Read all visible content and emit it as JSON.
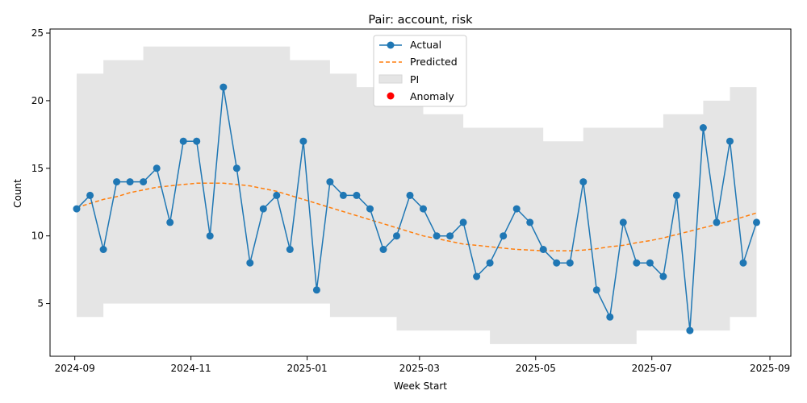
{
  "chart_data": {
    "type": "line",
    "title": "Pair: account, risk",
    "xlabel": "Week Start",
    "ylabel": "Count",
    "x_ticks": [
      "2024-09",
      "2024-11",
      "2025-01",
      "2025-03",
      "2025-05",
      "2025-07",
      "2025-09"
    ],
    "y_ticks": [
      5,
      10,
      15,
      20,
      25
    ],
    "xlim": [
      "2024-08-19",
      "2025-09-12"
    ],
    "ylim": [
      1.1,
      25.3
    ],
    "grid": false,
    "legend_position": "upper center",
    "x": [
      "2024-09-02",
      "2024-09-09",
      "2024-09-16",
      "2024-09-23",
      "2024-09-30",
      "2024-10-07",
      "2024-10-14",
      "2024-10-21",
      "2024-10-28",
      "2024-11-04",
      "2024-11-11",
      "2024-11-18",
      "2024-11-25",
      "2024-12-02",
      "2024-12-09",
      "2024-12-16",
      "2024-12-23",
      "2024-12-30",
      "2025-01-06",
      "2025-01-13",
      "2025-01-20",
      "2025-01-27",
      "2025-02-03",
      "2025-02-10",
      "2025-02-17",
      "2025-02-24",
      "2025-03-03",
      "2025-03-10",
      "2025-03-17",
      "2025-03-24",
      "2025-03-31",
      "2025-04-07",
      "2025-04-14",
      "2025-04-21",
      "2025-04-28",
      "2025-05-05",
      "2025-05-12",
      "2025-05-19",
      "2025-05-26",
      "2025-06-02",
      "2025-06-09",
      "2025-06-16",
      "2025-06-23",
      "2025-06-30",
      "2025-07-07",
      "2025-07-14",
      "2025-07-21",
      "2025-07-28",
      "2025-08-04",
      "2025-08-11",
      "2025-08-18",
      "2025-08-25"
    ],
    "series": [
      {
        "name": "Actual",
        "color": "#1f77b4",
        "marker": "circle",
        "values": [
          12,
          13,
          9,
          14,
          14,
          14,
          15,
          11,
          17,
          17,
          10,
          21,
          15,
          8,
          12,
          13,
          9,
          17,
          6,
          14,
          13,
          13,
          12,
          9,
          10,
          13,
          12,
          10,
          10,
          11,
          7,
          8,
          10,
          12,
          11,
          9,
          8,
          8,
          14,
          6,
          4,
          11,
          8,
          8,
          7,
          13,
          3,
          18,
          11,
          17,
          8,
          11
        ]
      },
      {
        "name": "Predicted",
        "color": "#ff7f0e",
        "line_style": "dashed",
        "values": [
          12.1,
          12.4,
          12.7,
          12.9,
          13.2,
          13.4,
          13.6,
          13.7,
          13.8,
          13.9,
          13.9,
          13.9,
          13.8,
          13.7,
          13.5,
          13.3,
          13.0,
          12.7,
          12.4,
          12.1,
          11.8,
          11.5,
          11.2,
          10.9,
          10.6,
          10.3,
          10.0,
          9.8,
          9.6,
          9.4,
          9.3,
          9.2,
          9.1,
          9.0,
          8.95,
          8.9,
          8.9,
          8.9,
          8.95,
          9.05,
          9.2,
          9.3,
          9.5,
          9.65,
          9.85,
          10.1,
          10.35,
          10.6,
          10.85,
          11.1,
          11.4,
          11.7
        ]
      }
    ],
    "prediction_interval": {
      "name": "PI",
      "color": "#e5e5e5",
      "lower": [
        4,
        4,
        5,
        5,
        5,
        5,
        5,
        5,
        5,
        5,
        5,
        5,
        5,
        5,
        5,
        5,
        5,
        5,
        5,
        4,
        4,
        4,
        4,
        4,
        3,
        3,
        3,
        3,
        3,
        3,
        3,
        2,
        2,
        2,
        2,
        2,
        2,
        2,
        2,
        2,
        2,
        2,
        3,
        3,
        3,
        3,
        3,
        3,
        3,
        4,
        4,
        4
      ],
      "upper": [
        22,
        22,
        23,
        23,
        23,
        24,
        24,
        24,
        24,
        24,
        24,
        24,
        24,
        24,
        24,
        24,
        23,
        23,
        23,
        22,
        22,
        21,
        21,
        21,
        20,
        20,
        19,
        19,
        19,
        18,
        18,
        18,
        18,
        18,
        18,
        17,
        17,
        17,
        18,
        18,
        18,
        18,
        18,
        18,
        19,
        19,
        19,
        20,
        20,
        21,
        21,
        21
      ]
    },
    "anomaly": {
      "name": "Anomaly",
      "color": "#ff0000",
      "points": []
    }
  }
}
